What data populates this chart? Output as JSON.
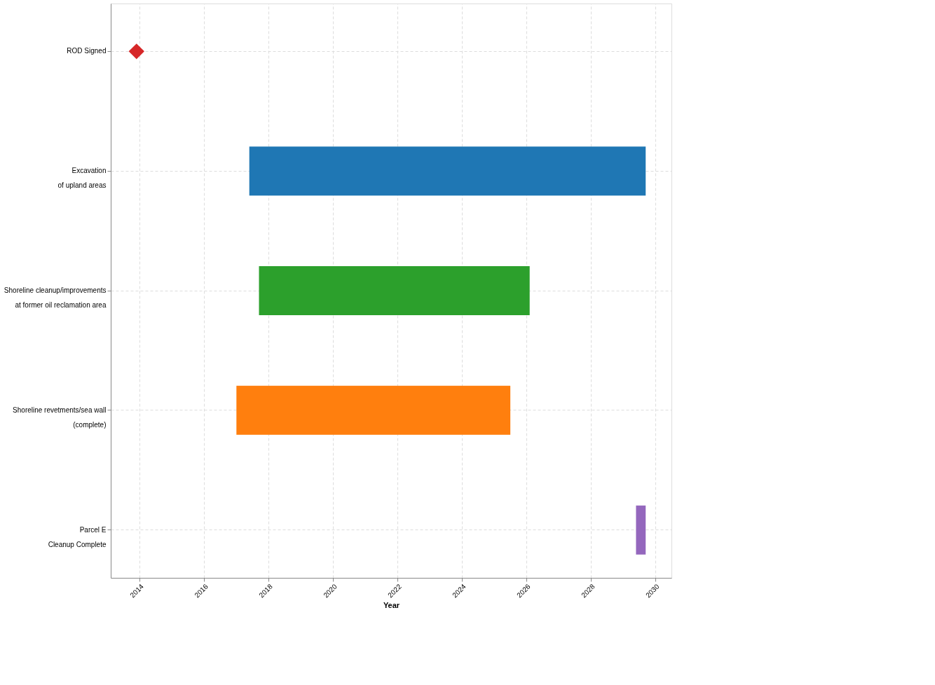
{
  "chart_data": {
    "type": "bar",
    "orientation": "horizontal",
    "xlabel": "Year",
    "categories": [
      "ROD Signed",
      "Excavation\nof upland areas",
      "Shoreline cleanup/improvements\nat former oil reclamation area",
      "Shoreline revetments/sea wall\n(complete)",
      "Parcel E\nCleanup Complete"
    ],
    "series": [
      {
        "values": [
          null,
          12.3,
          8.4,
          8.5,
          0.3
        ],
        "base": [
          null,
          2017.4,
          2017.7,
          2017.0,
          2029.4
        ],
        "colors": [
          null,
          "#1f77b4",
          "#2ca02c",
          "#ff7f0e",
          "#9467bd"
        ]
      },
      {
        "type": "scatter",
        "values": [
          2013.9,
          null,
          null,
          null,
          null
        ],
        "color": "#d62728",
        "marker": "diamond"
      }
    ],
    "xlim": [
      2013.1,
      2030.5
    ],
    "xticks": [
      2014,
      2016,
      2018,
      2020,
      2022,
      2024,
      2026,
      2028,
      2030
    ],
    "grid": true,
    "line_style": "dashed",
    "legend": false
  }
}
